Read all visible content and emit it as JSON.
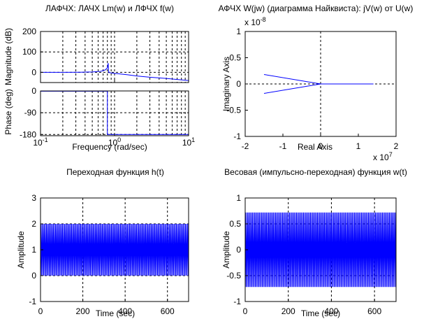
{
  "window": {
    "background": "#ffffff",
    "axis_color": "#000000",
    "grid_color": "#000000",
    "line_color": "#0000ff"
  },
  "chart_data": [
    {
      "id": "bode",
      "type": "line",
      "title": "ЛАФЧХ: ЛАЧХ Lm(w) и ЛФЧХ f(w)",
      "xlabel": "Frequency (rad/sec)",
      "xscale": "log",
      "xlim": [
        0.1,
        10
      ],
      "xticks": [
        {
          "value": 0.1,
          "base": "10",
          "exp": "-1"
        },
        {
          "value": 1,
          "base": "10",
          "exp": "0"
        },
        {
          "value": 10,
          "base": "10",
          "exp": "1"
        }
      ],
      "grid": true,
      "subplots": [
        {
          "ylabel": "Magnitude (dB)",
          "ylim": [
            -50,
            200
          ],
          "yticks": [
            -100,
            0,
            100,
            200
          ],
          "yticklabels": [
            "",
            "0",
            "100",
            "200"
          ],
          "series": [
            {
              "x": [
                0.1,
                0.2,
                0.35,
                0.5,
                0.65,
                0.75,
                0.8,
                0.82,
                0.83,
                0.84,
                0.86,
                0.9,
                1.0,
                1.5,
                2,
                3,
                5,
                7,
                10
              ],
              "y": [
                0,
                0,
                0.5,
                2,
                5,
                12,
                22,
                45,
                8,
                -2,
                -1,
                -3,
                -5,
                -12,
                -18,
                -24,
                -30,
                -35,
                -40
              ]
            }
          ]
        },
        {
          "ylabel": "Phase (deg)",
          "ylim": [
            -185,
            0
          ],
          "yticks": [
            0,
            -90,
            -180
          ],
          "yticklabels": [
            "0",
            "-90",
            "-180"
          ],
          "series": [
            {
              "x": [
                0.1,
                0.8,
                0.8,
                10
              ],
              "y": [
                -1,
                -1,
                -180,
                -180
              ]
            }
          ]
        }
      ]
    },
    {
      "id": "nyquist",
      "type": "line",
      "title": "АФЧХ W(jw) (диаграмма Найквиста): jV(w) от U(w)",
      "xlabel": "Real Axis",
      "ylabel": "Imaginary Axis",
      "xlim": [
        -2,
        2
      ],
      "ylim": [
        -1,
        1
      ],
      "xticks": [
        -2,
        -1,
        0,
        1,
        2
      ],
      "yticks": [
        -1,
        -0.5,
        0,
        0.5,
        1
      ],
      "yticklabels": [
        "-1",
        "-0.5",
        "0",
        "0.5",
        "1"
      ],
      "x_exponent": {
        "base": "x 10",
        "exp": "7"
      },
      "y_exponent": {
        "base": "x 10",
        "exp": "-8"
      },
      "crosshair": true,
      "series": [
        {
          "x": [
            1.4,
            0,
            -1.5
          ],
          "y": [
            0,
            0,
            0.18
          ]
        },
        {
          "x": [
            0,
            -1.5
          ],
          "y": [
            0,
            -0.18
          ]
        }
      ]
    },
    {
      "id": "step",
      "type": "line",
      "title": "Переходная функция h(t)",
      "xlabel": "Time (sec)",
      "ylabel": "Amplitude",
      "xlim": [
        0,
        700
      ],
      "ylim": [
        -1,
        3
      ],
      "xticks": [
        0,
        200,
        400,
        600
      ],
      "yticks": [
        -1,
        0,
        1,
        2,
        3
      ],
      "grid": true,
      "signal": {
        "kind": "oscillation",
        "center": 1,
        "amplitude": 1,
        "cycles": 130,
        "t_start": 0,
        "t_end": 700
      }
    },
    {
      "id": "impulse",
      "type": "line",
      "title": "Весовая (импульсно-переходная) функция w(t)",
      "xlabel": "Time (sec)",
      "ylabel": "Amplitude",
      "xlim": [
        0,
        700
      ],
      "ylim": [
        -1,
        1
      ],
      "xticks": [
        0,
        200,
        400,
        600
      ],
      "yticks": [
        -1,
        -0.5,
        0,
        0.5,
        1
      ],
      "yticklabels": [
        "-1",
        "-0.5",
        "0",
        "0.5",
        "1"
      ],
      "grid": true,
      "signal": {
        "kind": "oscillation",
        "center": 0,
        "amplitude": 0.72,
        "cycles": 130,
        "t_start": 0,
        "t_end": 700
      }
    }
  ]
}
